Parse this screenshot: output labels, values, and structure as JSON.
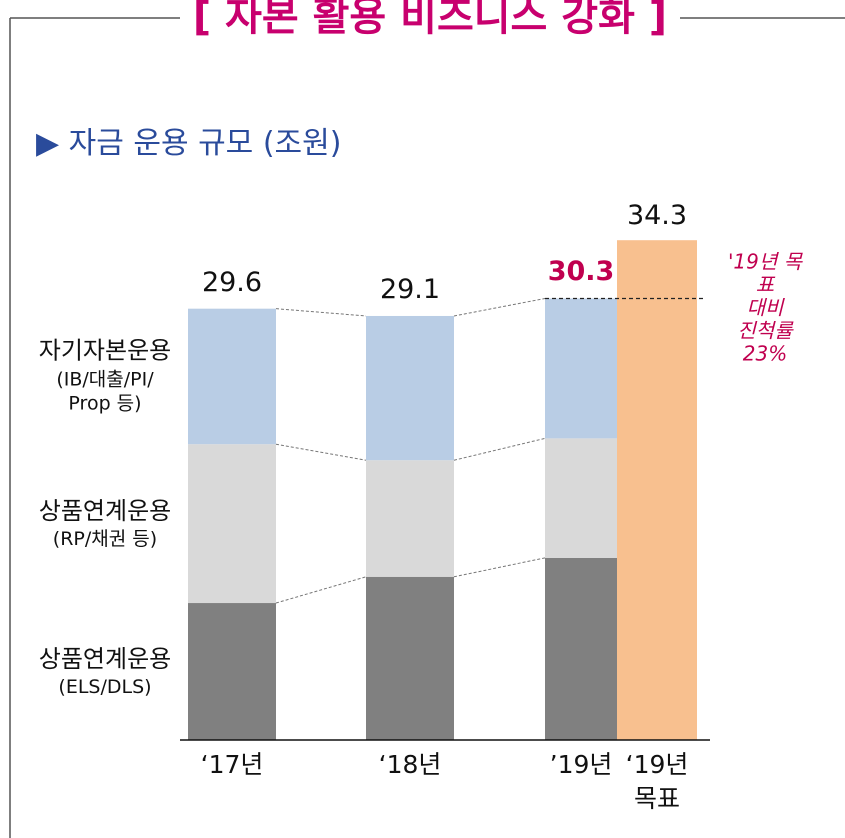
{
  "chart_data": {
    "type": "stacked-bar",
    "title": "[ 자본 활용 비즈니스 강화 ]",
    "subtitle": "▶ 자금 운용 규모 (조원)",
    "categories": [
      "‘17년",
      "‘18년",
      "’19년",
      "‘19년\n목표"
    ],
    "series": [
      {
        "name": "상품연계운용\n(ELS/DLS)",
        "color": "#808080",
        "values": [
          9.4,
          11.2,
          12.5,
          null
        ]
      },
      {
        "name": "상품연계운용\n(RP/채권 등)",
        "color": "#d9d9d9",
        "values": [
          10.9,
          8.0,
          8.2,
          null
        ]
      },
      {
        "name": "자기자본운용\n(IB/대출/PI/\nProp 등)",
        "color": "#b9cde5",
        "values": [
          9.3,
          9.9,
          9.6,
          null
        ]
      },
      {
        "color": "#f8c08f",
        "values": [
          null,
          null,
          null,
          34.3
        ]
      }
    ],
    "totals": [
      29.6,
      29.1,
      30.3,
      null
    ],
    "highlight": {
      "index": 2,
      "color": "#c0004f"
    },
    "annotation": "'19년 목표\n대비\n진척률 23%",
    "ylim": [
      0,
      35
    ]
  }
}
